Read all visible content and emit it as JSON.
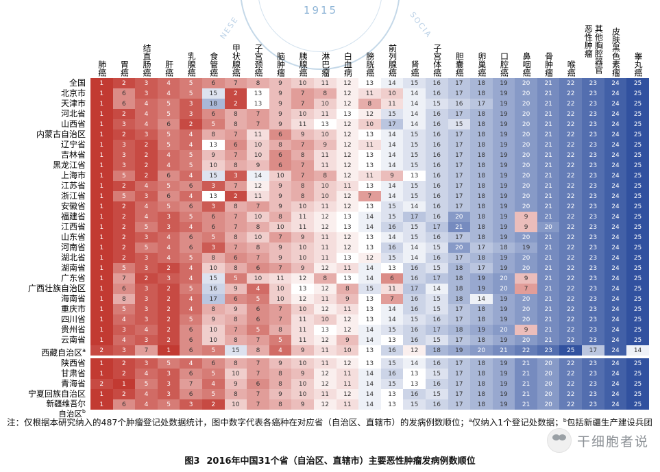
{
  "watermarks": {
    "seal_year": "1915",
    "seal_arc_left": "NESE",
    "seal_arc_right": "SOCIA",
    "association_faint": "中国抗癌协会",
    "brand": "干细胞者说"
  },
  "note": {
    "prefix": "注：仅根据本研究纳入的487个肿瘤登记处数据统计，图中数字代表各癌种在对应省（自治区、直辖市）的发病例数顺位；",
    "sup_a": "a",
    "text_a": "仅纳入1个登记处数据；",
    "sup_b": "b",
    "text_b": "包括新疆生产建设兵团"
  },
  "caption": {
    "tag": "图3",
    "text": "2016年中国31个省（自治区、直辖市）主要恶性肿瘤发病例数顺位"
  },
  "chart_data": {
    "type": "heatmap",
    "title": "2016年中国31个省（自治区、直辖市）主要恶性肿瘤发病例数顺位",
    "value_meaning": "发病例数顺位（1=最高）",
    "value_range": [
      1,
      25
    ],
    "colorscale": {
      "low": "#c23a32",
      "mid": "#ffffff",
      "high": "#31519f"
    },
    "columns": [
      "肺癌",
      "胃癌",
      "结直肠癌",
      "肝癌",
      "乳腺癌",
      "食管癌",
      "甲状腺癌",
      "子宫颈癌",
      "脑肿瘤",
      "胰腺癌",
      "淋巴瘤",
      "白血病",
      "膀胱癌",
      "前列腺癌",
      "肾癌",
      "子宫体癌",
      "胆囊癌",
      "卵巢癌",
      "口腔癌",
      "鼻咽癌",
      "骨肿瘤",
      "喉癌",
      "其他胸腔器官恶性肿瘤",
      "皮肤黑色素瘤",
      "睾丸癌"
    ],
    "rows": [
      {
        "name": "全国"
      },
      {
        "name": "北京市"
      },
      {
        "name": "天津市"
      },
      {
        "name": "河北省"
      },
      {
        "name": "山西省"
      },
      {
        "name": "内蒙古自治区"
      },
      {
        "name": "辽宁省"
      },
      {
        "name": "吉林省"
      },
      {
        "name": "黑龙江省"
      },
      {
        "name": "上海市"
      },
      {
        "name": "江苏省"
      },
      {
        "name": "浙江省"
      },
      {
        "name": "安徽省"
      },
      {
        "name": "福建省"
      },
      {
        "name": "江西省"
      },
      {
        "name": "山东省"
      },
      {
        "name": "河南省"
      },
      {
        "name": "湖北省"
      },
      {
        "name": "湖南省"
      },
      {
        "name": "广东省"
      },
      {
        "name": "广西壮族自治区"
      },
      {
        "name": "海南省"
      },
      {
        "name": "重庆市"
      },
      {
        "name": "四川省"
      },
      {
        "name": "贵州省"
      },
      {
        "name": "云南省"
      },
      {
        "name": "西藏自治区",
        "sup": "a"
      },
      {
        "name": "陕西省"
      },
      {
        "name": "甘肃省"
      },
      {
        "name": "青海省"
      },
      {
        "name": "宁夏回族自治区"
      },
      {
        "name": "新疆维吾尔\n自治区",
        "sup": "b"
      }
    ],
    "values": [
      [
        1,
        2,
        3,
        4,
        5,
        6,
        7,
        8,
        9,
        10,
        11,
        12,
        13,
        14,
        15,
        16,
        17,
        18,
        19,
        20,
        21,
        22,
        23,
        24,
        25
      ],
      [
        1,
        6,
        3,
        4,
        5,
        15,
        2,
        13,
        9,
        7,
        8,
        12,
        11,
        10,
        14,
        16,
        17,
        18,
        19,
        20,
        21,
        22,
        23,
        24,
        25
      ],
      [
        1,
        6,
        4,
        5,
        3,
        18,
        2,
        13,
        9,
        7,
        10,
        12,
        8,
        11,
        14,
        15,
        16,
        17,
        19,
        20,
        21,
        22,
        23,
        24,
        25
      ],
      [
        1,
        2,
        4,
        5,
        3,
        6,
        8,
        7,
        9,
        10,
        11,
        13,
        12,
        15,
        14,
        16,
        17,
        18,
        19,
        20,
        21,
        22,
        23,
        24,
        25
      ],
      [
        1,
        3,
        4,
        6,
        2,
        5,
        8,
        7,
        9,
        11,
        13,
        12,
        10,
        17,
        14,
        16,
        15,
        18,
        19,
        20,
        21,
        22,
        23,
        24,
        25
      ],
      [
        1,
        2,
        3,
        5,
        4,
        8,
        7,
        11,
        6,
        9,
        10,
        12,
        13,
        14,
        15,
        16,
        17,
        18,
        19,
        20,
        21,
        22,
        23,
        24,
        25
      ],
      [
        1,
        3,
        2,
        5,
        4,
        13,
        6,
        10,
        8,
        7,
        9,
        12,
        11,
        14,
        15,
        16,
        17,
        18,
        19,
        20,
        21,
        22,
        23,
        24,
        25
      ],
      [
        1,
        3,
        2,
        4,
        5,
        9,
        7,
        10,
        6,
        8,
        11,
        12,
        13,
        14,
        15,
        16,
        17,
        18,
        19,
        20,
        21,
        22,
        23,
        24,
        25
      ],
      [
        1,
        3,
        2,
        4,
        5,
        10,
        8,
        9,
        6,
        7,
        11,
        12,
        13,
        14,
        15,
        16,
        17,
        18,
        19,
        20,
        21,
        22,
        23,
        24,
        25
      ],
      [
        1,
        5,
        2,
        6,
        4,
        15,
        3,
        14,
        10,
        7,
        8,
        12,
        11,
        9,
        13,
        16,
        17,
        18,
        19,
        20,
        21,
        22,
        23,
        24,
        25
      ],
      [
        1,
        2,
        4,
        5,
        6,
        3,
        7,
        12,
        9,
        8,
        10,
        11,
        13,
        14,
        15,
        16,
        17,
        18,
        19,
        20,
        21,
        22,
        23,
        24,
        25
      ],
      [
        1,
        5,
        3,
        6,
        4,
        13,
        2,
        11,
        9,
        8,
        10,
        12,
        7,
        14,
        15,
        16,
        17,
        18,
        19,
        20,
        21,
        22,
        23,
        24,
        25
      ],
      [
        1,
        2,
        4,
        5,
        6,
        3,
        8,
        7,
        9,
        10,
        11,
        12,
        13,
        15,
        14,
        16,
        17,
        18,
        19,
        20,
        21,
        22,
        23,
        24,
        25
      ],
      [
        1,
        2,
        4,
        3,
        5,
        6,
        7,
        10,
        8,
        11,
        12,
        13,
        14,
        15,
        17,
        16,
        20,
        18,
        19,
        9,
        21,
        22,
        23,
        24,
        25
      ],
      [
        1,
        2,
        5,
        3,
        4,
        6,
        7,
        8,
        10,
        11,
        12,
        13,
        14,
        16,
        15,
        17,
        21,
        18,
        19,
        9,
        20,
        22,
        23,
        24,
        25
      ],
      [
        1,
        2,
        3,
        4,
        6,
        5,
        8,
        10,
        7,
        9,
        11,
        12,
        13,
        14,
        15,
        16,
        17,
        18,
        19,
        20,
        21,
        22,
        23,
        24,
        25
      ],
      [
        1,
        2,
        5,
        4,
        6,
        3,
        7,
        8,
        9,
        10,
        11,
        12,
        13,
        16,
        14,
        15,
        20,
        17,
        18,
        19,
        21,
        22,
        23,
        24,
        25
      ],
      [
        1,
        2,
        3,
        4,
        5,
        8,
        6,
        7,
        9,
        10,
        11,
        13,
        12,
        15,
        14,
        16,
        17,
        18,
        19,
        20,
        21,
        22,
        23,
        24,
        25
      ],
      [
        1,
        5,
        3,
        2,
        4,
        10,
        8,
        6,
        7,
        9,
        12,
        11,
        14,
        13,
        16,
        15,
        18,
        17,
        19,
        20,
        21,
        22,
        23,
        24,
        25
      ],
      [
        1,
        7,
        2,
        3,
        4,
        15,
        5,
        10,
        11,
        12,
        8,
        13,
        14,
        6,
        16,
        17,
        18,
        19,
        20,
        9,
        21,
        22,
        23,
        24,
        25
      ],
      [
        1,
        6,
        3,
        2,
        5,
        16,
        9,
        4,
        10,
        13,
        12,
        8,
        15,
        11,
        17,
        14,
        18,
        19,
        20,
        7,
        21,
        22,
        23,
        24,
        25
      ],
      [
        1,
        8,
        3,
        2,
        4,
        17,
        6,
        5,
        10,
        12,
        11,
        9,
        13,
        7,
        16,
        15,
        18,
        14,
        19,
        20,
        21,
        22,
        23,
        24,
        25
      ],
      [
        1,
        5,
        3,
        2,
        4,
        8,
        9,
        6,
        7,
        10,
        12,
        11,
        13,
        14,
        16,
        15,
        17,
        18,
        19,
        20,
        21,
        22,
        23,
        24,
        25
      ],
      [
        1,
        4,
        3,
        2,
        5,
        9,
        8,
        6,
        7,
        11,
        10,
        12,
        13,
        14,
        15,
        16,
        17,
        18,
        19,
        20,
        21,
        22,
        23,
        24,
        25
      ],
      [
        1,
        3,
        4,
        2,
        6,
        10,
        7,
        5,
        8,
        11,
        13,
        12,
        14,
        15,
        16,
        17,
        18,
        19,
        20,
        9,
        21,
        22,
        23,
        24,
        25
      ],
      [
        1,
        4,
        3,
        2,
        6,
        10,
        8,
        7,
        5,
        11,
        12,
        9,
        14,
        13,
        16,
        15,
        17,
        18,
        19,
        20,
        21,
        22,
        23,
        24,
        25
      ],
      [
        2,
        3,
        7,
        1,
        6,
        5,
        15,
        8,
        4,
        9,
        11,
        10,
        13,
        16,
        12,
        18,
        19,
        20,
        21,
        22,
        23,
        25,
        17,
        24,
        14
      ],
      [
        1,
        2,
        3,
        5,
        4,
        6,
        8,
        7,
        9,
        10,
        11,
        12,
        13,
        15,
        14,
        16,
        17,
        18,
        19,
        21,
        20,
        22,
        23,
        24,
        25
      ],
      [
        1,
        2,
        4,
        3,
        6,
        5,
        10,
        7,
        8,
        9,
        12,
        11,
        14,
        16,
        13,
        15,
        17,
        18,
        19,
        21,
        20,
        22,
        23,
        24,
        25
      ],
      [
        2,
        1,
        5,
        3,
        7,
        4,
        9,
        6,
        8,
        10,
        12,
        11,
        14,
        15,
        13,
        16,
        17,
        18,
        19,
        21,
        20,
        22,
        23,
        24,
        25
      ],
      [
        1,
        2,
        4,
        3,
        6,
        5,
        8,
        7,
        9,
        10,
        11,
        12,
        14,
        13,
        16,
        15,
        17,
        18,
        19,
        21,
        20,
        22,
        23,
        24,
        25
      ],
      [
        1,
        6,
        4,
        5,
        3,
        2,
        10,
        7,
        8,
        9,
        12,
        11,
        14,
        13,
        15,
        16,
        17,
        18,
        19,
        21,
        20,
        22,
        23,
        24,
        25
      ]
    ]
  }
}
